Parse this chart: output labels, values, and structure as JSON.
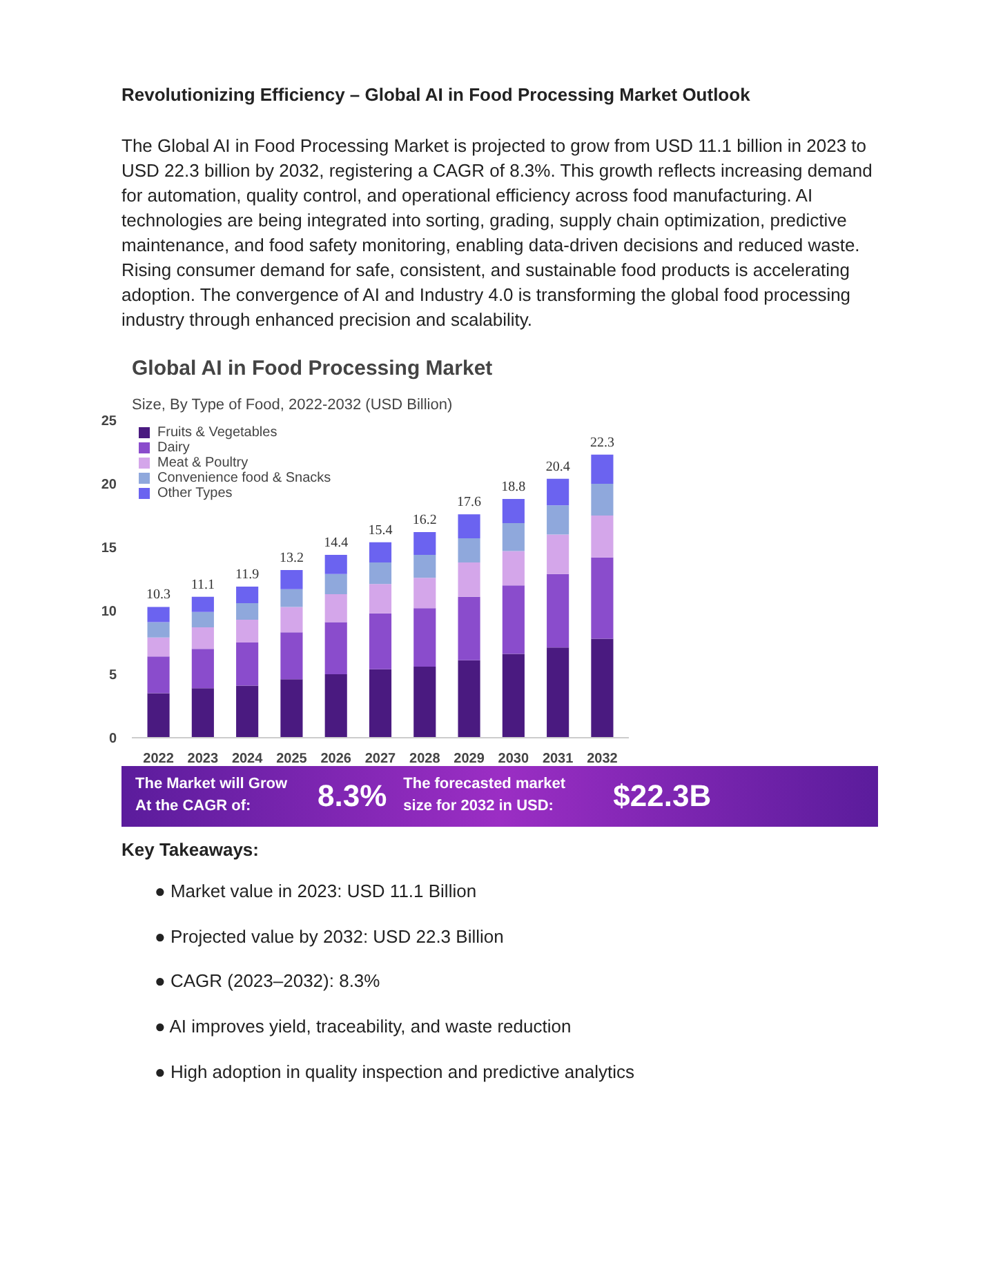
{
  "chart_data": {
    "type": "bar",
    "stacked": true,
    "title": "Global AI in Food Processing Market",
    "subtitle": "Size, By Type of Food, 2022-2032 (USD Billion)",
    "categories": [
      "2022",
      "2023",
      "2024",
      "2025",
      "2026",
      "2027",
      "2028",
      "2029",
      "2030",
      "2031",
      "2032"
    ],
    "series": [
      {
        "name": "Fruits & Vegetables",
        "color": "#4a1a80",
        "values": [
          3.5,
          3.9,
          4.1,
          4.6,
          5.0,
          5.4,
          5.6,
          6.1,
          6.6,
          7.1,
          7.8
        ]
      },
      {
        "name": "Dairy",
        "color": "#8a4ccc",
        "values": [
          2.9,
          3.1,
          3.4,
          3.7,
          4.1,
          4.4,
          4.6,
          5.0,
          5.4,
          5.8,
          6.4
        ]
      },
      {
        "name": "Meat & Poultry",
        "color": "#d4a6ea",
        "values": [
          1.5,
          1.7,
          1.8,
          2.0,
          2.2,
          2.3,
          2.4,
          2.7,
          2.7,
          3.1,
          3.3
        ]
      },
      {
        "name": "Convenience food & Snacks",
        "color": "#8fa8dc",
        "values": [
          1.2,
          1.2,
          1.3,
          1.4,
          1.6,
          1.7,
          1.8,
          1.9,
          2.2,
          2.3,
          2.5
        ]
      },
      {
        "name": "Other Types",
        "color": "#6b63f0",
        "values": [
          1.2,
          1.2,
          1.3,
          1.5,
          1.5,
          1.6,
          1.8,
          1.9,
          1.9,
          2.1,
          2.3
        ]
      }
    ],
    "totals": [
      "10.3",
      "11.1",
      "11.9",
      "13.2",
      "14.4",
      "15.4",
      "16.2",
      "17.6",
      "18.8",
      "20.4",
      "22.3"
    ],
    "ylim": [
      0,
      25
    ],
    "yticks": [
      0,
      5,
      10,
      15,
      20,
      25
    ],
    "grid": false,
    "legend": "top left",
    "annotations": [
      "Revolutionizing Efficiency – Global AI in Food Processing Market Outlook",
      "The Global AI in Food Processing Market is projected to grow from USD 11.1 billion in 2023 to USD 22.3 billion by 2032, registering a CAGR of 8.3%. This growth reflects increasing demand for automation, quality control, and operational efficiency across food manufacturing. AI technologies are being integrated into sorting, grading, supply chain optimization, predictive maintenance, and food safety monitoring, enabling data-driven decisions and reduced waste. Rising consumer demand for safe, consistent, and sustainable food products is accelerating adoption. The convergence of AI and Industry 4.0 is transforming the global food processing industry through enhanced precision and scalability.",
      "The Market will Grow At the CAGR of:",
      "8.3%",
      "The forecasted market size for 2032 in USD:",
      "$22.3B",
      "Key Takeaways:",
      "● Market value in 2023: USD 11.1 Billion",
      "● Projected value by 2032: USD 22.3 Billion",
      "● CAGR (2023–2032): 8.3%",
      "● AI improves yield, traceability, and waste reduction",
      "● High adoption in quality inspection and predictive analytics"
    ]
  }
}
